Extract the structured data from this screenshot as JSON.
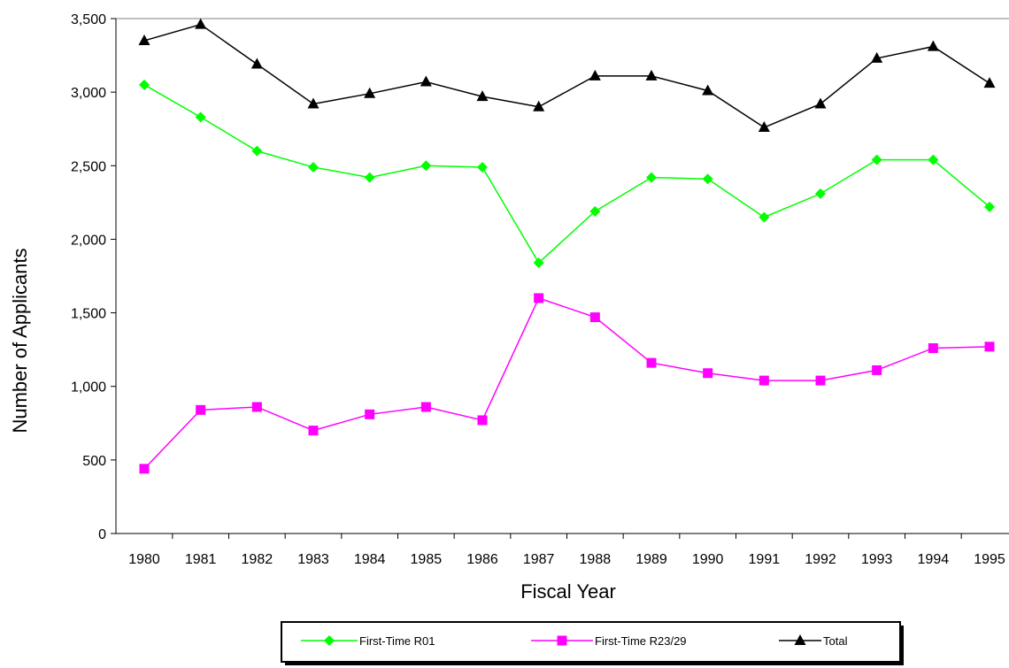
{
  "chart_data": {
    "type": "line",
    "title": "",
    "xlabel": "Fiscal Year",
    "ylabel": "Number of Applicants",
    "categories": [
      "1980",
      "1981",
      "1982",
      "1983",
      "1984",
      "1985",
      "1986",
      "1987",
      "1988",
      "1989",
      "1990",
      "1991",
      "1992",
      "1993",
      "1994",
      "1995"
    ],
    "ylim": [
      0,
      3500
    ],
    "yticks": [
      0,
      500,
      1000,
      1500,
      2000,
      2500,
      3000,
      3500
    ],
    "ytick_labels": [
      "0",
      "500",
      "1,000",
      "1,500",
      "2,000",
      "2,500",
      "3,000",
      "3,500"
    ],
    "grid": false,
    "legend_position": "bottom",
    "series": [
      {
        "name": "First-Time R01",
        "color": "#00ff00",
        "marker": "diamond",
        "values": [
          3050,
          2830,
          2600,
          2490,
          2420,
          2500,
          2490,
          1840,
          2190,
          2420,
          2410,
          2150,
          2310,
          2540,
          2540,
          2220
        ]
      },
      {
        "name": "First-Time R23/29",
        "color": "#ff00ff",
        "marker": "square",
        "values": [
          440,
          840,
          860,
          700,
          810,
          860,
          770,
          1600,
          1470,
          1160,
          1090,
          1040,
          1040,
          1110,
          1260,
          1270
        ]
      },
      {
        "name": "Total",
        "color": "#000000",
        "marker": "triangle",
        "values": [
          3350,
          3460,
          3190,
          2920,
          2990,
          3070,
          2970,
          2900,
          3110,
          3110,
          3010,
          2760,
          2920,
          3230,
          3310,
          3060
        ]
      }
    ]
  }
}
